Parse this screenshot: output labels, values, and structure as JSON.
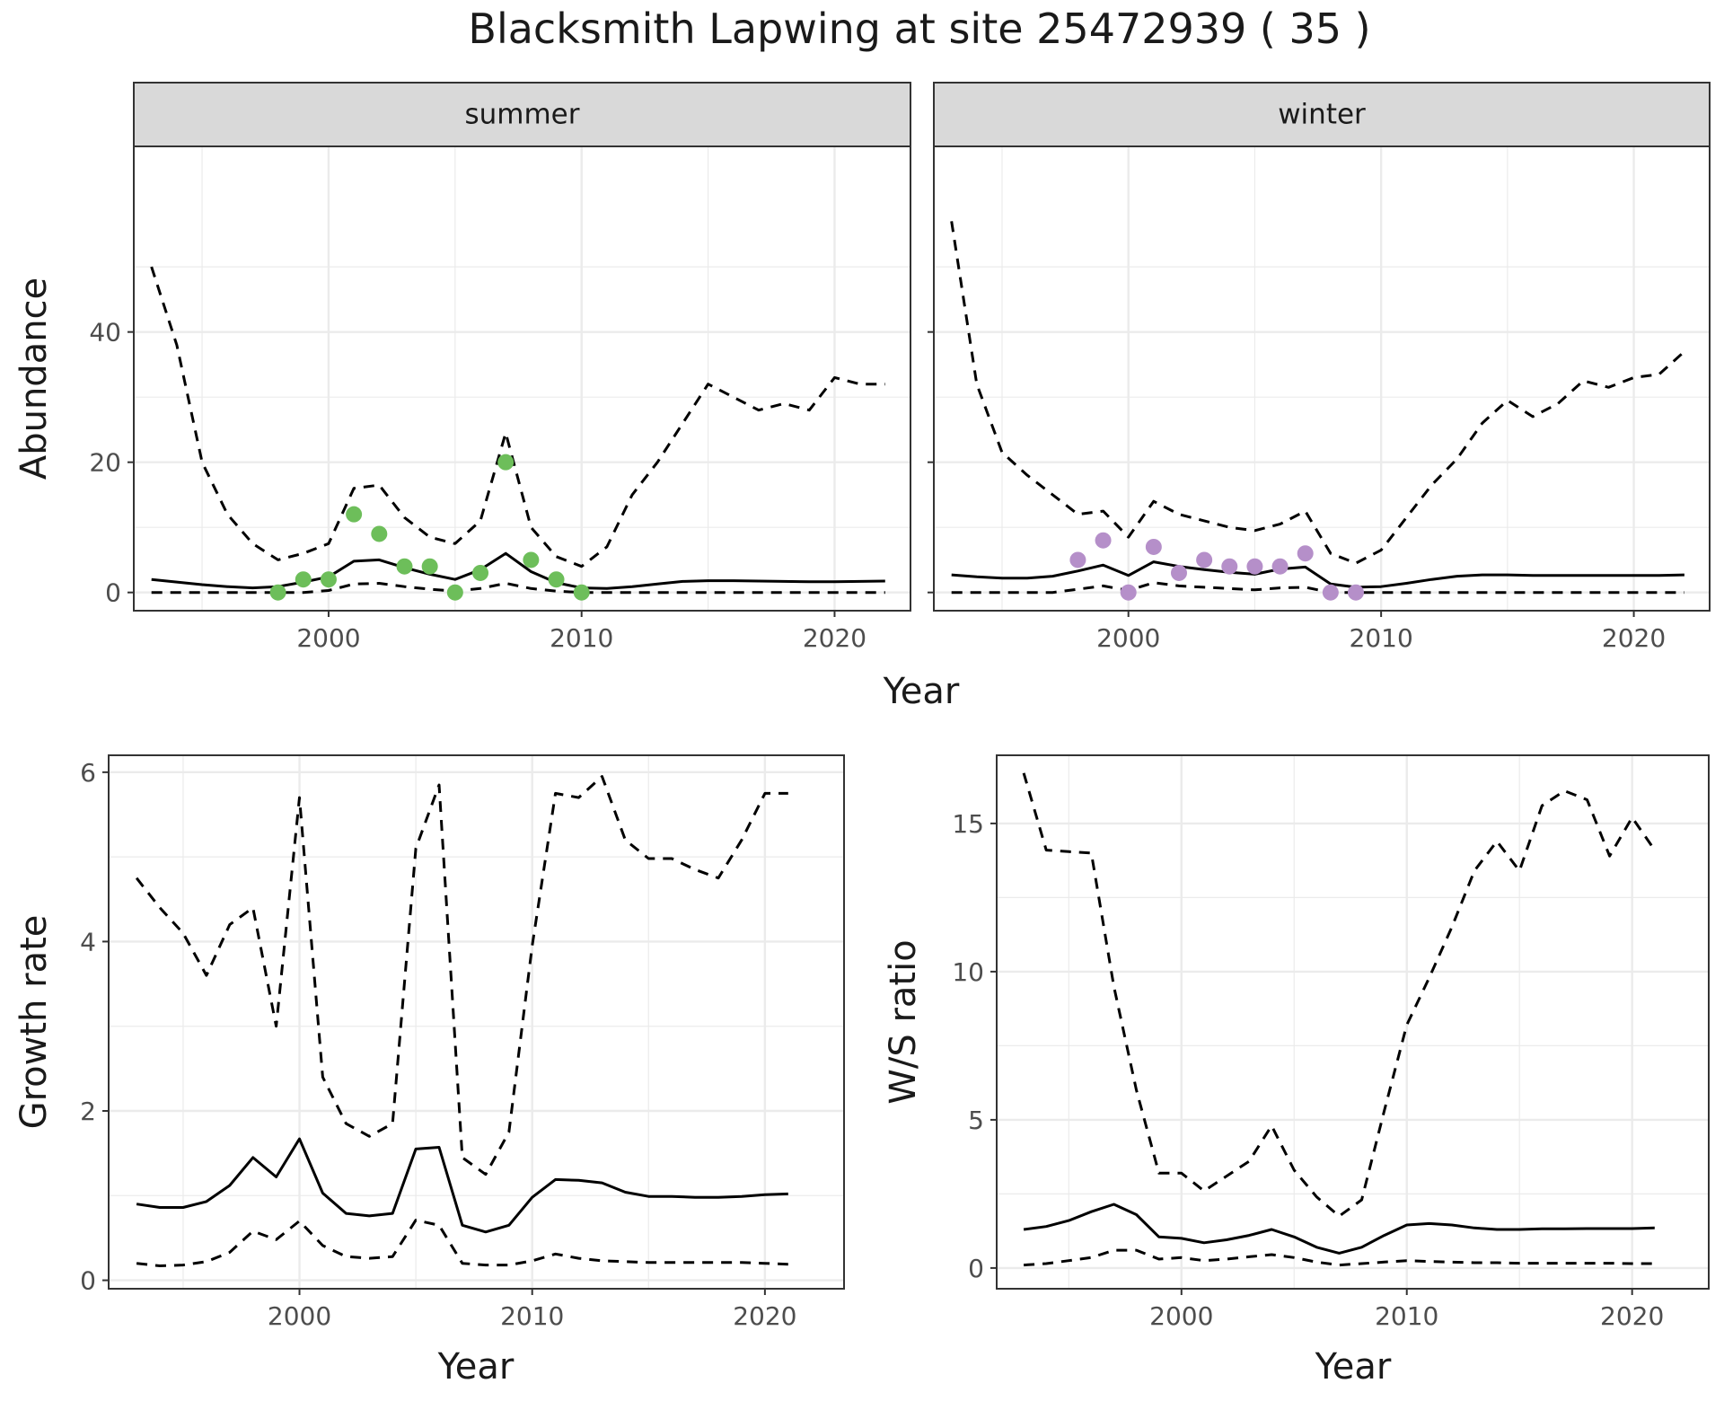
{
  "title": "Blacksmith Lapwing at site 25472939 ( 35 )",
  "colors": {
    "summer_points": "#6DBE5A",
    "winter_points": "#B58FC9",
    "strip_fill": "#D9D9D9",
    "grid": "#EBEBEB",
    "line": "#000000"
  },
  "chart_data": [
    {
      "type": "line",
      "panel": "summer",
      "strip_label": "summer",
      "xlabel": "Year",
      "ylabel": "Abundance",
      "xlim": [
        1992.3,
        2023.0
      ],
      "ylim": [
        -2.8,
        68.5
      ],
      "xticks": [
        2000,
        2010,
        2020
      ],
      "yticks": [
        0,
        20,
        40
      ],
      "grid": true,
      "series": [
        {
          "style": "dashed",
          "x": [
            1993,
            1994,
            1995,
            1996,
            1997,
            1998,
            1999,
            2000,
            2001,
            2002,
            2003,
            2004,
            2005,
            2006,
            2007,
            2008,
            2009,
            2010,
            2011,
            2012,
            2013,
            2014,
            2015,
            2016,
            2017,
            2018,
            2019,
            2020,
            2021,
            2022
          ],
          "y": [
            50,
            38,
            20,
            12,
            7.5,
            5,
            6,
            7.5,
            16,
            16.5,
            11.5,
            8.5,
            7.5,
            11,
            24.5,
            10,
            5.5,
            4,
            7,
            15,
            20,
            26,
            32,
            30,
            28,
            29,
            28,
            33,
            32,
            32
          ]
        },
        {
          "style": "solid",
          "x": [
            1993,
            1994,
            1995,
            1996,
            1997,
            1998,
            1999,
            2000,
            2001,
            2002,
            2003,
            2004,
            2005,
            2006,
            2007,
            2008,
            2009,
            2010,
            2011,
            2012,
            2013,
            2014,
            2015,
            2016,
            2017,
            2018,
            2019,
            2020,
            2021,
            2022
          ],
          "y": [
            2,
            1.6,
            1.2,
            0.9,
            0.7,
            0.9,
            1.6,
            2.4,
            4.8,
            5,
            3.8,
            2.8,
            2,
            3.5,
            6,
            3.2,
            1.5,
            0.7,
            0.6,
            0.9,
            1.3,
            1.7,
            1.8,
            1.8,
            1.75,
            1.7,
            1.65,
            1.65,
            1.7,
            1.75
          ]
        },
        {
          "style": "dashed",
          "x": [
            1993,
            1994,
            1995,
            1996,
            1997,
            1998,
            1999,
            2000,
            2001,
            2002,
            2003,
            2004,
            2005,
            2006,
            2007,
            2008,
            2009,
            2010,
            2011,
            2012,
            2013,
            2014,
            2015,
            2016,
            2017,
            2018,
            2019,
            2020,
            2021,
            2022
          ],
          "y": [
            0,
            0,
            0,
            0,
            0,
            0,
            0,
            0.3,
            1.3,
            1.4,
            0.9,
            0.5,
            0.2,
            0.6,
            1.4,
            0.6,
            0.2,
            0,
            0,
            0,
            0,
            0,
            0,
            0,
            0,
            0,
            0,
            0,
            0,
            0
          ]
        }
      ],
      "points": {
        "x": [
          1998,
          1999,
          2000,
          2001,
          2002,
          2003,
          2004,
          2005,
          2006,
          2007,
          2008,
          2009,
          2010
        ],
        "y": [
          0,
          2,
          2,
          12,
          9,
          4,
          4,
          0,
          3,
          20,
          5,
          2,
          0
        ]
      }
    },
    {
      "type": "line",
      "panel": "winter",
      "strip_label": "winter",
      "xlabel": "Year",
      "ylabel": "Abundance",
      "xlim": [
        1992.3,
        2023.0
      ],
      "ylim": [
        -2.8,
        68.5
      ],
      "xticks": [
        2000,
        2010,
        2020
      ],
      "yticks": [
        0,
        20,
        40
      ],
      "grid": true,
      "series": [
        {
          "style": "dashed",
          "x": [
            1993,
            1994,
            1995,
            1996,
            1997,
            1998,
            1999,
            2000,
            2001,
            2002,
            2003,
            2004,
            2005,
            2006,
            2007,
            2008,
            2009,
            2010,
            2011,
            2012,
            2013,
            2014,
            2015,
            2016,
            2017,
            2018,
            2019,
            2020,
            2021,
            2022
          ],
          "y": [
            57,
            32,
            21.5,
            18,
            15,
            12,
            12.5,
            8.5,
            14,
            12,
            11,
            10,
            9.5,
            10.5,
            12.5,
            6,
            4.5,
            6.5,
            11.5,
            16.5,
            20.5,
            26,
            29.5,
            27,
            29,
            32.5,
            31.5,
            33,
            33.5,
            37
          ]
        },
        {
          "style": "solid",
          "x": [
            1993,
            1994,
            1995,
            1996,
            1997,
            1998,
            1999,
            2000,
            2001,
            2002,
            2003,
            2004,
            2005,
            2006,
            2007,
            2008,
            2009,
            2010,
            2011,
            2012,
            2013,
            2014,
            2015,
            2016,
            2017,
            2018,
            2019,
            2020,
            2021,
            2022
          ],
          "y": [
            2.7,
            2.4,
            2.2,
            2.2,
            2.5,
            3.3,
            4.2,
            2.6,
            4.7,
            4,
            3.5,
            3.1,
            2.8,
            3.6,
            3.9,
            1.3,
            0.8,
            0.9,
            1.4,
            2,
            2.5,
            2.7,
            2.7,
            2.6,
            2.6,
            2.6,
            2.6,
            2.6,
            2.6,
            2.7
          ]
        },
        {
          "style": "dashed",
          "x": [
            1993,
            1994,
            1995,
            1996,
            1997,
            1998,
            1999,
            2000,
            2001,
            2002,
            2003,
            2004,
            2005,
            2006,
            2007,
            2008,
            2009,
            2010,
            2011,
            2012,
            2013,
            2014,
            2015,
            2016,
            2017,
            2018,
            2019,
            2020,
            2021,
            2022
          ],
          "y": [
            0,
            0,
            0,
            0,
            0,
            0.5,
            1,
            0.3,
            1.5,
            1,
            0.8,
            0.6,
            0.4,
            0.7,
            0.8,
            0,
            0,
            0,
            0,
            0,
            0,
            0,
            0,
            0,
            0,
            0,
            0,
            0,
            0,
            0
          ]
        }
      ],
      "points": {
        "x": [
          1998,
          1999,
          2000,
          2001,
          2002,
          2003,
          2004,
          2005,
          2006,
          2007,
          2008,
          2009
        ],
        "y": [
          5,
          8,
          0,
          7,
          3,
          5,
          4,
          4,
          4,
          6,
          0,
          0
        ]
      }
    },
    {
      "type": "line",
      "panel": "growth",
      "xlabel": "Year",
      "ylabel": "Growth rate",
      "xlim": [
        1991.8,
        2023.4
      ],
      "ylim": [
        -0.1,
        6.2
      ],
      "xticks": [
        2000,
        2010,
        2020
      ],
      "yticks": [
        0,
        2,
        4,
        6
      ],
      "grid": true,
      "series": [
        {
          "style": "dashed",
          "x": [
            1993,
            1994,
            1995,
            1996,
            1997,
            1998,
            1999,
            2000,
            2001,
            2002,
            2003,
            2004,
            2005,
            2006,
            2007,
            2008,
            2009,
            2010,
            2011,
            2012,
            2013,
            2014,
            2015,
            2016,
            2017,
            2018,
            2019,
            2020,
            2021
          ],
          "y": [
            4.75,
            4.4,
            4.1,
            3.6,
            4.2,
            4.4,
            3.0,
            5.7,
            2.4,
            1.85,
            1.7,
            1.85,
            5.1,
            5.85,
            1.45,
            1.25,
            1.75,
            3.95,
            5.75,
            5.7,
            5.95,
            5.2,
            4.98,
            4.98,
            4.85,
            4.75,
            5.2,
            5.75,
            5.75
          ]
        },
        {
          "style": "solid",
          "x": [
            1993,
            1994,
            1995,
            1996,
            1997,
            1998,
            1999,
            2000,
            2001,
            2002,
            2003,
            2004,
            2005,
            2006,
            2007,
            2008,
            2009,
            2010,
            2011,
            2012,
            2013,
            2014,
            2015,
            2016,
            2017,
            2018,
            2019,
            2020,
            2021
          ],
          "y": [
            0.9,
            0.86,
            0.86,
            0.93,
            1.12,
            1.45,
            1.22,
            1.67,
            1.03,
            0.79,
            0.76,
            0.79,
            1.55,
            1.57,
            0.65,
            0.57,
            0.65,
            0.98,
            1.19,
            1.18,
            1.15,
            1.04,
            0.99,
            0.99,
            0.98,
            0.98,
            0.99,
            1.01,
            1.02
          ]
        },
        {
          "style": "dashed",
          "x": [
            1993,
            1994,
            1995,
            1996,
            1997,
            1998,
            1999,
            2000,
            2001,
            2002,
            2003,
            2004,
            2005,
            2006,
            2007,
            2008,
            2009,
            2010,
            2011,
            2012,
            2013,
            2014,
            2015,
            2016,
            2017,
            2018,
            2019,
            2020,
            2021
          ],
          "y": [
            0.2,
            0.17,
            0.18,
            0.22,
            0.33,
            0.58,
            0.48,
            0.7,
            0.41,
            0.28,
            0.26,
            0.28,
            0.71,
            0.65,
            0.2,
            0.18,
            0.18,
            0.23,
            0.31,
            0.26,
            0.23,
            0.22,
            0.21,
            0.21,
            0.21,
            0.21,
            0.21,
            0.2,
            0.19
          ]
        }
      ]
    },
    {
      "type": "line",
      "panel": "ratio",
      "xlabel": "Year",
      "ylabel": "W/S ratio",
      "xlim": [
        1991.8,
        2023.4
      ],
      "ylim": [
        -0.7,
        17.3
      ],
      "xticks": [
        2000,
        2010,
        2020
      ],
      "yticks": [
        0,
        5,
        10,
        15
      ],
      "grid": true,
      "series": [
        {
          "style": "dashed",
          "x": [
            1993,
            1994,
            1995,
            1996,
            1997,
            1998,
            1999,
            2000,
            2001,
            2002,
            2003,
            2004,
            2005,
            2006,
            2007,
            2008,
            2009,
            2010,
            2011,
            2012,
            2013,
            2014,
            2015,
            2016,
            2017,
            2018,
            2019,
            2020,
            2021
          ],
          "y": [
            16.7,
            14.1,
            14.05,
            14.0,
            9.5,
            6.0,
            3.2,
            3.2,
            2.6,
            3.1,
            3.6,
            4.8,
            3.3,
            2.4,
            1.75,
            2.3,
            5.3,
            8.2,
            9.8,
            11.5,
            13.4,
            14.4,
            13.4,
            15.6,
            16.1,
            15.8,
            13.9,
            15.2,
            14.1
          ]
        },
        {
          "style": "solid",
          "x": [
            1993,
            1994,
            1995,
            1996,
            1997,
            1998,
            1999,
            2000,
            2001,
            2002,
            2003,
            2004,
            2005,
            2006,
            2007,
            2008,
            2009,
            2010,
            2011,
            2012,
            2013,
            2014,
            2015,
            2016,
            2017,
            2018,
            2019,
            2020,
            2021
          ],
          "y": [
            1.3,
            1.4,
            1.6,
            1.9,
            2.15,
            1.8,
            1.05,
            1.0,
            0.85,
            0.95,
            1.1,
            1.3,
            1.05,
            0.7,
            0.5,
            0.7,
            1.1,
            1.45,
            1.5,
            1.45,
            1.35,
            1.3,
            1.3,
            1.32,
            1.32,
            1.33,
            1.33,
            1.33,
            1.35
          ]
        },
        {
          "style": "dashed",
          "x": [
            1993,
            1994,
            1995,
            1996,
            1997,
            1998,
            1999,
            2000,
            2001,
            2002,
            2003,
            2004,
            2005,
            2006,
            2007,
            2008,
            2009,
            2010,
            2011,
            2012,
            2013,
            2014,
            2015,
            2016,
            2017,
            2018,
            2019,
            2020,
            2021
          ],
          "y": [
            0.1,
            0.15,
            0.25,
            0.35,
            0.6,
            0.6,
            0.3,
            0.35,
            0.25,
            0.3,
            0.38,
            0.45,
            0.35,
            0.2,
            0.1,
            0.15,
            0.2,
            0.25,
            0.22,
            0.2,
            0.18,
            0.18,
            0.16,
            0.16,
            0.16,
            0.16,
            0.16,
            0.15,
            0.15
          ]
        }
      ]
    }
  ]
}
